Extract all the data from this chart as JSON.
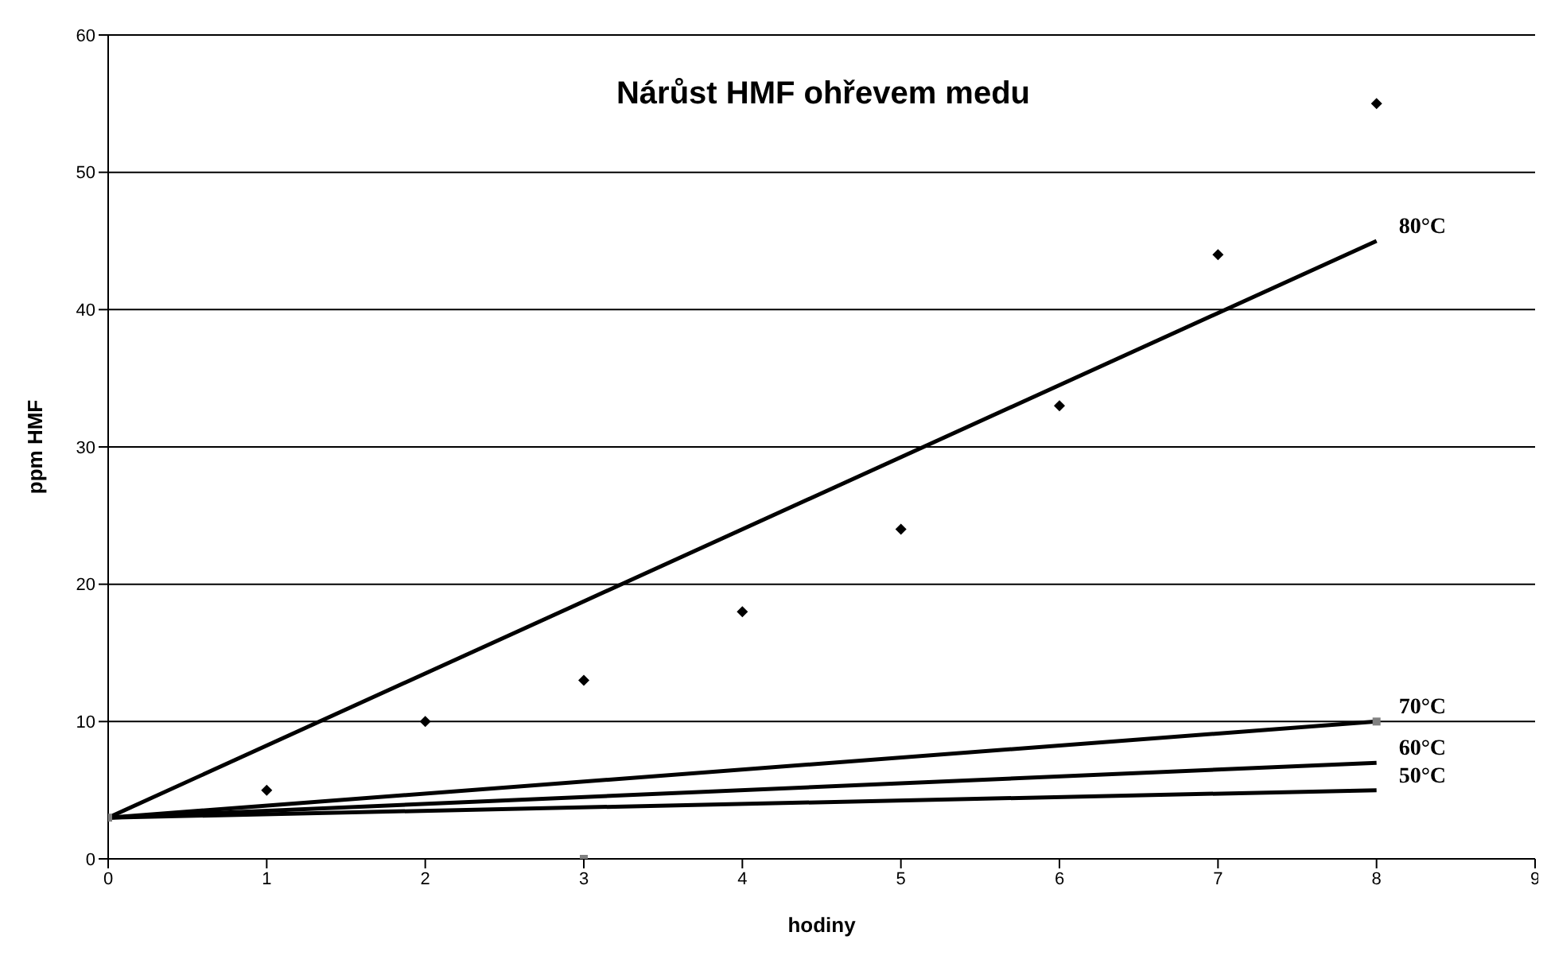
{
  "chart_data": {
    "type": "scatter",
    "title": "Nárůst HMF ohřevem medu",
    "xlabel": "hodiny",
    "ylabel": "ppm HMF",
    "xlim": [
      0,
      9
    ],
    "xticks": [
      0,
      1,
      2,
      3,
      4,
      5,
      6,
      7,
      8,
      9
    ],
    "ylim": [
      0,
      60
    ],
    "yticks": [
      0,
      10,
      20,
      30,
      40,
      50,
      60
    ],
    "grid": "y",
    "legend": false,
    "series": [
      {
        "type": "line",
        "name": "80°C",
        "color": "#000000",
        "marker": "none",
        "x": [
          0,
          8
        ],
        "values": [
          3,
          45
        ]
      },
      {
        "type": "line",
        "name": "70°C",
        "color": "#000000",
        "marker": "none",
        "x": [
          0,
          8
        ],
        "values": [
          3,
          10
        ]
      },
      {
        "type": "line",
        "name": "60°C",
        "color": "#000000",
        "marker": "none",
        "x": [
          0,
          8
        ],
        "values": [
          3,
          7
        ]
      },
      {
        "type": "line",
        "name": "50°C",
        "color": "#000000",
        "marker": "none",
        "x": [
          0,
          8
        ],
        "values": [
          3,
          5
        ]
      },
      {
        "color": "#000000",
        "marker": "diamond",
        "x": [
          1,
          2,
          3,
          4,
          5,
          6,
          7,
          8
        ],
        "values": [
          5,
          10,
          13,
          18,
          24,
          33,
          44,
          55
        ]
      },
      {
        "color": "#808080",
        "marker": "square",
        "x": [
          0,
          3,
          8
        ],
        "values": [
          3,
          0,
          10
        ]
      }
    ]
  }
}
